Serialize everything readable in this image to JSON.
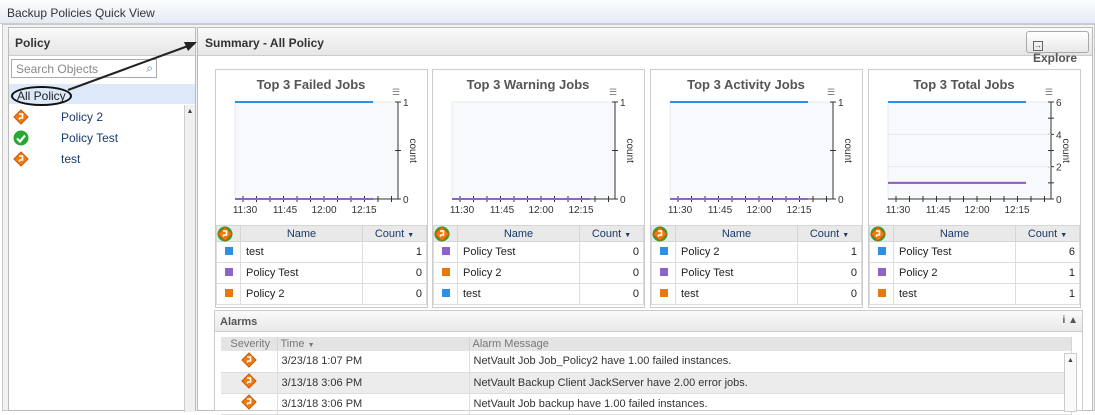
{
  "window": {
    "title": "Backup Policies Quick View"
  },
  "left": {
    "header": "Policy",
    "search_placeholder": "Search Objects",
    "root": "All Policy",
    "items": [
      {
        "label": "Policy 2",
        "status": "warning"
      },
      {
        "label": "Policy Test",
        "status": "ok"
      },
      {
        "label": "test",
        "status": "warning"
      }
    ]
  },
  "main": {
    "header": "Summary - All Policy",
    "explore_label": "Explore"
  },
  "colors": {
    "blue": "#2e8fe8",
    "purple": "#8e63c8",
    "orange": "#e8790f"
  },
  "table_headers": {
    "name": "Name",
    "count": "Count"
  },
  "chart_data": [
    {
      "type": "line",
      "title": "Top 3 Failed Jobs",
      "ylabel": "count",
      "ylim": [
        0,
        1
      ],
      "yticks": [
        "0",
        "1"
      ],
      "xticks": [
        "11:30",
        "11:45",
        "12:00",
        "12:15"
      ],
      "series": [
        {
          "name": "test",
          "status": "warning",
          "color": "blue",
          "value": 1
        },
        {
          "name": "Policy Test",
          "status": "ok",
          "color": "purple",
          "value": 0
        },
        {
          "name": "Policy 2",
          "status": "warning",
          "color": "orange",
          "value": 0
        }
      ]
    },
    {
      "type": "line",
      "title": "Top 3 Warning Jobs",
      "ylabel": "count",
      "ylim": [
        0,
        1
      ],
      "yticks": [
        "0",
        "1"
      ],
      "xticks": [
        "11:30",
        "11:45",
        "12:00",
        "12:15"
      ],
      "series": [
        {
          "name": "Policy Test",
          "status": "ok",
          "color": "purple",
          "value": 0
        },
        {
          "name": "Policy 2",
          "status": "warning",
          "color": "orange",
          "value": 0
        },
        {
          "name": "test",
          "status": "warning",
          "color": "blue",
          "value": 0
        }
      ]
    },
    {
      "type": "line",
      "title": "Top 3 Activity Jobs",
      "ylabel": "count",
      "ylim": [
        0,
        1
      ],
      "yticks": [
        "0",
        "1"
      ],
      "xticks": [
        "11:30",
        "11:45",
        "12:00",
        "12:15"
      ],
      "series": [
        {
          "name": "Policy 2",
          "status": "warning",
          "color": "blue",
          "value": 1
        },
        {
          "name": "Policy Test",
          "status": "ok",
          "color": "purple",
          "value": 0
        },
        {
          "name": "test",
          "status": "warning",
          "color": "orange",
          "value": 0
        }
      ]
    },
    {
      "type": "line",
      "title": "Top 3 Total Jobs",
      "ylabel": "count",
      "ylim": [
        0,
        6
      ],
      "yticks": [
        "0",
        "2",
        "4",
        "6"
      ],
      "xticks": [
        "11:30",
        "11:45",
        "12:00",
        "12:15"
      ],
      "series": [
        {
          "name": "Policy Test",
          "status": "ok",
          "color": "blue",
          "value": 6
        },
        {
          "name": "Policy 2",
          "status": "warning",
          "color": "purple",
          "value": 1
        },
        {
          "name": "test",
          "status": "warning",
          "color": "orange",
          "value": 1
        }
      ]
    }
  ],
  "alarms": {
    "title": "Alarms",
    "columns": [
      "Severity",
      "Time",
      "Alarm Message"
    ],
    "rows": [
      {
        "severity": "warning",
        "time": "3/23/18 1:07 PM",
        "message": "NetVault Job Job_Policy2 have 1.00 failed instances."
      },
      {
        "severity": "warning",
        "time": "3/13/18 3:06 PM",
        "message": "NetVault Backup Client JackServer have 2.00 error jobs."
      },
      {
        "severity": "warning",
        "time": "3/13/18 3:06 PM",
        "message": "NetVault Job backup have 1.00 failed instances."
      }
    ]
  }
}
